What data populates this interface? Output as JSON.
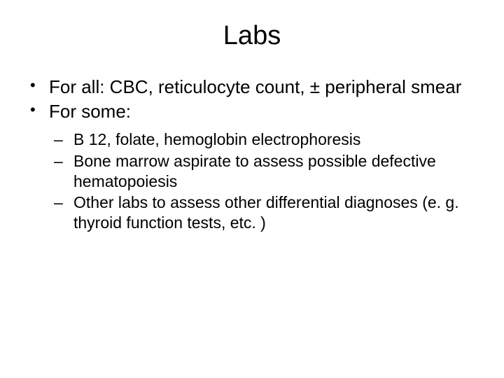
{
  "slide": {
    "title": "Labs",
    "bullets": [
      {
        "text": "For all: CBC, reticulocyte count, ± peripheral smear"
      },
      {
        "text": "For some:"
      }
    ],
    "subBullets": [
      {
        "text": "B 12, folate, hemoglobin electrophoresis"
      },
      {
        "text": "Bone marrow aspirate to assess possible defective hematopoiesis"
      },
      {
        "text": "Other labs to assess other differential diagnoses (e. g. thyroid function tests, etc. )"
      }
    ],
    "colors": {
      "background": "#ffffff",
      "text": "#000000"
    },
    "typography": {
      "title_fontsize": 38,
      "bullet_fontsize": 26,
      "sub_fontsize": 23,
      "font_family": "Arial"
    }
  }
}
